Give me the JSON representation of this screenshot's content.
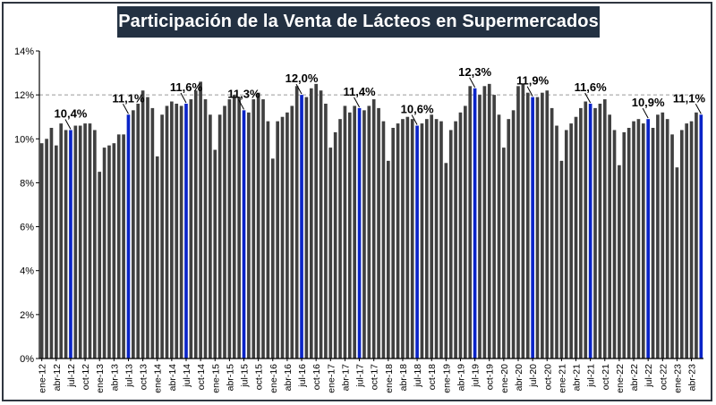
{
  "chart_data": {
    "type": "bar",
    "title": "Participación de la Venta de Lácteos en Supermercados",
    "xlabel": "",
    "ylabel": "",
    "ylim": [
      0,
      14
    ],
    "grid": false,
    "reference_line": {
      "value": 12,
      "style": "dashed"
    },
    "yticks": [
      "0%",
      "2%",
      "4%",
      "6%",
      "8%",
      "10%",
      "12%",
      "14%"
    ],
    "colors": {
      "bar": "#404040",
      "highlight": "#0a24c8",
      "axis": "#000000",
      "refline": "#9a9a9a"
    },
    "categories": [
      "ene-12",
      "feb-12",
      "mar-12",
      "abr-12",
      "may-12",
      "jun-12",
      "jul-12",
      "ago-12",
      "sep-12",
      "oct-12",
      "nov-12",
      "dic-12",
      "ene-13",
      "feb-13",
      "mar-13",
      "abr-13",
      "may-13",
      "jun-13",
      "jul-13",
      "ago-13",
      "sep-13",
      "oct-13",
      "nov-13",
      "dic-13",
      "ene-14",
      "feb-14",
      "mar-14",
      "abr-14",
      "may-14",
      "jun-14",
      "jul-14",
      "ago-14",
      "sep-14",
      "oct-14",
      "nov-14",
      "dic-14",
      "ene-15",
      "feb-15",
      "mar-15",
      "abr-15",
      "may-15",
      "jun-15",
      "jul-15",
      "ago-15",
      "sep-15",
      "oct-15",
      "nov-15",
      "dic-15",
      "ene-16",
      "feb-16",
      "mar-16",
      "abr-16",
      "may-16",
      "jun-16",
      "jul-16",
      "ago-16",
      "sep-16",
      "oct-16",
      "nov-16",
      "dic-16",
      "ene-17",
      "feb-17",
      "mar-17",
      "abr-17",
      "may-17",
      "jun-17",
      "jul-17",
      "ago-17",
      "sep-17",
      "oct-17",
      "nov-17",
      "dic-17",
      "ene-18",
      "feb-18",
      "mar-18",
      "abr-18",
      "may-18",
      "jun-18",
      "jul-18",
      "ago-18",
      "sep-18",
      "oct-18",
      "nov-18",
      "dic-18",
      "ene-19",
      "feb-19",
      "mar-19",
      "abr-19",
      "may-19",
      "jun-19",
      "jul-19",
      "ago-19",
      "sep-19",
      "oct-19",
      "nov-19",
      "dic-19",
      "ene-20",
      "feb-20",
      "mar-20",
      "abr-20",
      "may-20",
      "jun-20",
      "jul-20",
      "ago-20",
      "sep-20",
      "oct-20",
      "nov-20",
      "dic-20",
      "ene-21",
      "feb-21",
      "mar-21",
      "abr-21",
      "may-21",
      "jun-21",
      "jul-21",
      "ago-21",
      "sep-21",
      "oct-21",
      "nov-21",
      "dic-21",
      "ene-22",
      "feb-22",
      "mar-22",
      "abr-22",
      "may-22",
      "jun-22",
      "jul-22",
      "ago-22",
      "sep-22",
      "oct-22",
      "nov-22",
      "dic-22",
      "ene-23",
      "feb-23",
      "mar-23",
      "abr-23",
      "may-23",
      "jun-23"
    ],
    "values": [
      9.8,
      10.0,
      10.5,
      9.7,
      10.7,
      10.4,
      10.4,
      10.6,
      10.6,
      10.7,
      10.7,
      10.4,
      8.5,
      9.6,
      9.7,
      9.8,
      10.2,
      10.2,
      11.1,
      11.3,
      11.6,
      12.2,
      11.9,
      11.4,
      9.2,
      11.1,
      11.5,
      11.7,
      11.6,
      11.5,
      11.6,
      11.8,
      12.2,
      12.6,
      11.8,
      11.1,
      9.5,
      11.1,
      11.5,
      11.8,
      12.0,
      11.9,
      11.3,
      11.2,
      11.8,
      12.1,
      11.8,
      10.8,
      9.1,
      10.8,
      11.0,
      11.2,
      11.5,
      12.4,
      12.0,
      11.9,
      12.3,
      12.5,
      12.2,
      11.6,
      9.6,
      10.3,
      10.9,
      11.5,
      11.2,
      11.5,
      11.4,
      11.3,
      11.5,
      11.8,
      11.4,
      10.8,
      9.0,
      10.5,
      10.7,
      10.9,
      11.0,
      10.9,
      10.6,
      10.7,
      10.9,
      11.1,
      10.9,
      10.8,
      8.9,
      10.4,
      10.8,
      11.2,
      11.5,
      12.4,
      12.3,
      12.0,
      12.4,
      12.5,
      12.0,
      11.1,
      9.6,
      10.9,
      11.3,
      12.4,
      12.5,
      12.1,
      11.9,
      11.9,
      12.1,
      12.2,
      11.4,
      10.6,
      9.0,
      10.4,
      10.7,
      11.0,
      11.4,
      11.7,
      11.6,
      11.4,
      11.6,
      11.8,
      11.1,
      10.4,
      8.8,
      10.3,
      10.5,
      10.8,
      10.9,
      10.7,
      10.9,
      10.5,
      11.1,
      11.2,
      10.9,
      10.2,
      8.7,
      10.4,
      10.7,
      10.8,
      11.2,
      11.1
    ],
    "highlight_indices": [
      6,
      18,
      30,
      42,
      54,
      66,
      78,
      90,
      102,
      114,
      126,
      137
    ],
    "data_labels": [
      {
        "index": 6,
        "text": "10,4%"
      },
      {
        "index": 18,
        "text": "11,1%"
      },
      {
        "index": 30,
        "text": "11,6%"
      },
      {
        "index": 42,
        "text": "11,3%"
      },
      {
        "index": 54,
        "text": "12,0%"
      },
      {
        "index": 66,
        "text": "11,4%"
      },
      {
        "index": 78,
        "text": "10,6%"
      },
      {
        "index": 90,
        "text": "12,3%"
      },
      {
        "index": 102,
        "text": "11,9%"
      },
      {
        "index": 114,
        "text": "11,6%"
      },
      {
        "index": 126,
        "text": "10,9%"
      },
      {
        "index": 137,
        "text": "11,1%"
      }
    ],
    "x_tick_labels": [
      {
        "index": 0,
        "text": "ene-12"
      },
      {
        "index": 3,
        "text": "abr-12"
      },
      {
        "index": 6,
        "text": "jul-12"
      },
      {
        "index": 9,
        "text": "oct-12"
      },
      {
        "index": 12,
        "text": "ene-13"
      },
      {
        "index": 15,
        "text": "abr-13"
      },
      {
        "index": 18,
        "text": "jul-13"
      },
      {
        "index": 21,
        "text": "oct-13"
      },
      {
        "index": 24,
        "text": "ene-14"
      },
      {
        "index": 27,
        "text": "abr-14"
      },
      {
        "index": 30,
        "text": "jul-14"
      },
      {
        "index": 33,
        "text": "oct-14"
      },
      {
        "index": 36,
        "text": "ene-15"
      },
      {
        "index": 39,
        "text": "abr-15"
      },
      {
        "index": 42,
        "text": "jul-15"
      },
      {
        "index": 45,
        "text": "oct-15"
      },
      {
        "index": 48,
        "text": "ene-16"
      },
      {
        "index": 51,
        "text": "abr-16"
      },
      {
        "index": 54,
        "text": "jul-16"
      },
      {
        "index": 57,
        "text": "oct-16"
      },
      {
        "index": 60,
        "text": "ene-17"
      },
      {
        "index": 63,
        "text": "abr-17"
      },
      {
        "index": 66,
        "text": "jul-17"
      },
      {
        "index": 69,
        "text": "oct-17"
      },
      {
        "index": 72,
        "text": "ene-18"
      },
      {
        "index": 75,
        "text": "abr-18"
      },
      {
        "index": 78,
        "text": "jul-18"
      },
      {
        "index": 81,
        "text": "oct-18"
      },
      {
        "index": 84,
        "text": "ene-19"
      },
      {
        "index": 87,
        "text": "abr-19"
      },
      {
        "index": 90,
        "text": "jul-19"
      },
      {
        "index": 93,
        "text": "oct-19"
      },
      {
        "index": 96,
        "text": "ene-20"
      },
      {
        "index": 99,
        "text": "abr-20"
      },
      {
        "index": 102,
        "text": "jul-20"
      },
      {
        "index": 105,
        "text": "oct-20"
      },
      {
        "index": 108,
        "text": "ene-21"
      },
      {
        "index": 111,
        "text": "abr-21"
      },
      {
        "index": 114,
        "text": "jul-21"
      },
      {
        "index": 117,
        "text": "oct-21"
      },
      {
        "index": 120,
        "text": "ene-22"
      },
      {
        "index": 123,
        "text": "abr-22"
      },
      {
        "index": 126,
        "text": "jul-22"
      },
      {
        "index": 129,
        "text": "oct-22"
      },
      {
        "index": 132,
        "text": "ene-23"
      },
      {
        "index": 135,
        "text": "abr-23"
      }
    ]
  }
}
